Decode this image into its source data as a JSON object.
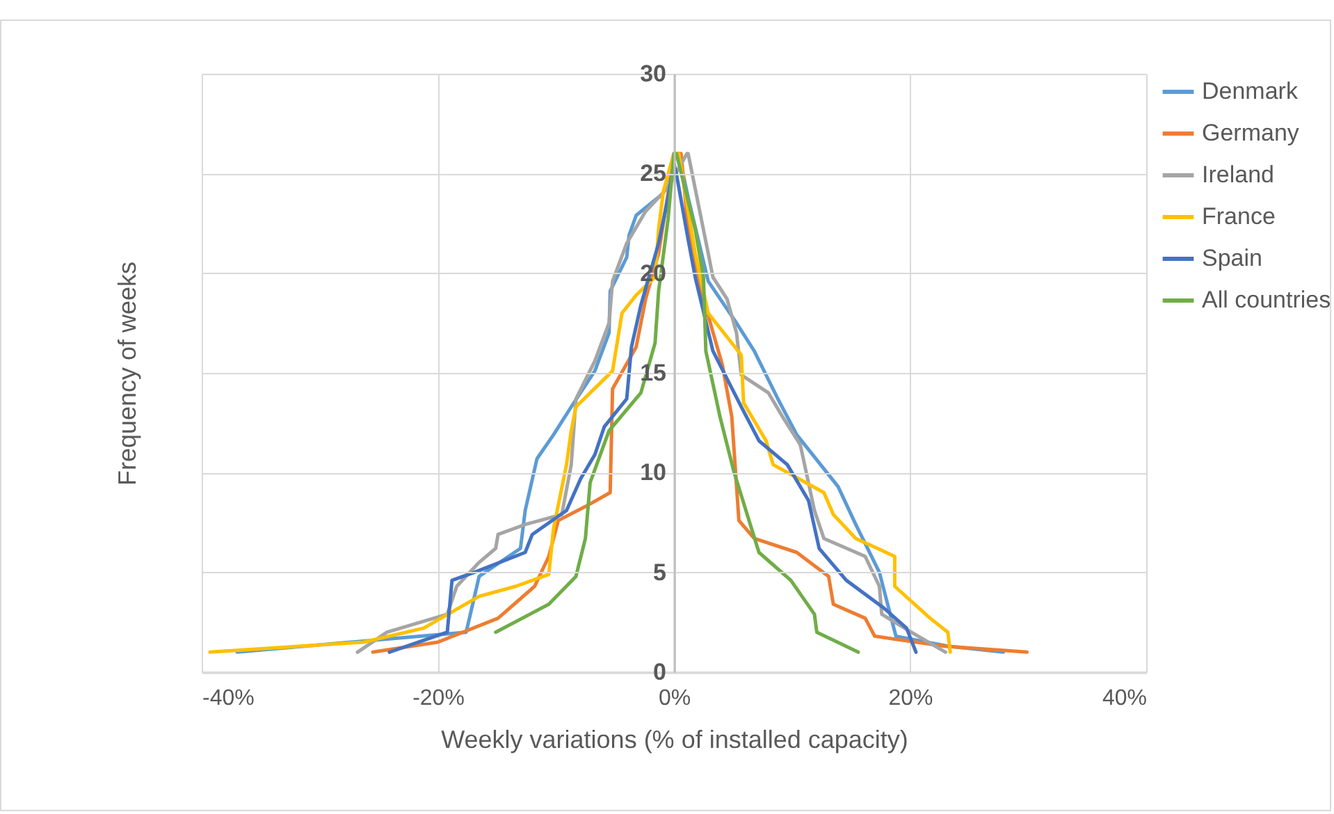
{
  "chart_data": {
    "type": "line",
    "xlabel": "Weekly variations (% of installed capacity)",
    "ylabel": "Frequency of weeks",
    "xlim": [
      -40,
      40
    ],
    "xticks": [
      {
        "value": -40,
        "label": "-40%"
      },
      {
        "value": -20,
        "label": "-20%"
      },
      {
        "value": 0,
        "label": "0%"
      },
      {
        "value": 20,
        "label": "20%"
      },
      {
        "value": 40,
        "label": "40%"
      }
    ],
    "ylim": [
      0,
      30
    ],
    "yticks": [
      0,
      5,
      10,
      15,
      20,
      25,
      30
    ],
    "grid": true,
    "legend": "right",
    "marker": "none",
    "line_style": "solid",
    "series": [
      {
        "name": "Denmark",
        "color": "#5b9bd5",
        "x": [
          -37,
          -17.6,
          -16.5,
          -13,
          -12.6,
          -11.6,
          -10.2,
          -8.7,
          -6.7,
          -5.5,
          -5.4,
          -4,
          -3.8,
          -3.2,
          -0.9,
          0,
          0.4,
          1.2,
          2.9,
          5.3,
          6.8,
          8.8,
          10.4,
          13.9,
          15.4,
          17.4,
          18.8,
          23.2,
          27.9
        ],
        "values": [
          1,
          2,
          4.8,
          6.2,
          8.1,
          10.7,
          11.9,
          13.3,
          15.1,
          17,
          19.1,
          20.8,
          21.9,
          22.9,
          24,
          26,
          26,
          23.8,
          19.6,
          17.5,
          16.1,
          13.7,
          11.9,
          9.3,
          7.4,
          5,
          1.8,
          1.3,
          1
        ]
      },
      {
        "name": "Germany",
        "color": "#ed7d31",
        "x": [
          -25.5,
          -20,
          -14.9,
          -11.8,
          -10.6,
          -9.8,
          -7.5,
          -5.4,
          -5.2,
          -3.2,
          -2.4,
          -1.3,
          -0.5,
          0.1,
          0.6,
          1.2,
          2.5,
          4.1,
          4.9,
          5.5,
          6.8,
          10.4,
          13.1,
          13.5,
          16.2,
          17,
          22.9,
          29.9
        ],
        "values": [
          1,
          1.5,
          2.7,
          4.3,
          5.8,
          7.6,
          8.3,
          9,
          14.2,
          16.3,
          18.7,
          21,
          24,
          26,
          26,
          22.2,
          18.7,
          15.4,
          12.8,
          7.6,
          6.7,
          6,
          4.8,
          3.4,
          2.7,
          1.8,
          1.3,
          1
        ]
      },
      {
        "name": "Ireland",
        "color": "#a5a5a5",
        "x": [
          -26.8,
          -24.3,
          -19.2,
          -18.4,
          -16.5,
          -15.1,
          -14.9,
          -12.6,
          -9.5,
          -8.7,
          -8.3,
          -6.7,
          -5.5,
          -5.2,
          -4,
          -2.4,
          -0.5,
          1.1,
          1.2,
          2.9,
          3.3,
          4.5,
          5.3,
          5.7,
          8,
          9.2,
          10.7,
          11.9,
          12.7,
          16.2,
          17.4,
          17.6,
          20.1,
          23
        ],
        "values": [
          1,
          2,
          2.9,
          4.3,
          5.5,
          6.2,
          6.9,
          7.4,
          7.9,
          10.4,
          13.7,
          15.6,
          17.5,
          19.6,
          21.5,
          23.1,
          24.3,
          26,
          26,
          21,
          19.8,
          18.7,
          17,
          14.9,
          14,
          12.8,
          11.4,
          8.1,
          6.7,
          5.8,
          4.3,
          2.9,
          2,
          1
        ]
      },
      {
        "name": "France",
        "color": "#ffc000",
        "x": [
          -39.3,
          -26.3,
          -21.2,
          -16.5,
          -13.4,
          -10.6,
          -10.2,
          -9.1,
          -8.7,
          -8.3,
          -7.1,
          -5.2,
          -4.4,
          -3.2,
          -1.6,
          -1.3,
          -0.9,
          0,
          0.4,
          1.8,
          2.9,
          5.7,
          5.9,
          7.8,
          8.4,
          12.7,
          13.5,
          15.4,
          18.7,
          18.7,
          21.7,
          23.2,
          23.4
        ],
        "values": [
          1,
          1.5,
          2.2,
          3.8,
          4.3,
          4.9,
          7.2,
          10.4,
          12.1,
          13.3,
          14,
          15.1,
          18,
          18.9,
          19.8,
          22.2,
          24.1,
          26,
          26,
          21,
          18,
          15.9,
          13.5,
          11.6,
          10.4,
          9,
          7.9,
          6.7,
          5.8,
          4.3,
          2.7,
          2,
          1
        ]
      },
      {
        "name": "Spain",
        "color": "#4472c4",
        "x": [
          -24.1,
          -19.2,
          -18.8,
          -16.9,
          -12.6,
          -12,
          -9.1,
          -7.9,
          -6.7,
          -5.9,
          -4,
          -3.6,
          -2.8,
          -1.3,
          -0.5,
          0,
          0.2,
          1.2,
          1.8,
          3.3,
          5.7,
          7.2,
          9.6,
          11.4,
          12.3,
          14.6,
          17.8,
          19.7,
          20.5
        ],
        "values": [
          1,
          2,
          4.6,
          5,
          6,
          6.9,
          8.1,
          9.7,
          10.9,
          12.3,
          13.7,
          16.3,
          18.4,
          21.5,
          23.8,
          25.5,
          25,
          21.7,
          19.8,
          16.1,
          13.3,
          11.6,
          10.4,
          8.6,
          6.2,
          4.6,
          3.2,
          2.2,
          1
        ]
      },
      {
        "name": "All countries",
        "color": "#70ad47",
        "x": [
          -15.1,
          -10.6,
          -8.3,
          -7.5,
          -7.1,
          -5.5,
          -2.8,
          -1.6,
          -1.3,
          -0.5,
          0,
          0.2,
          1.8,
          2.5,
          2.7,
          3.9,
          5.1,
          7.2,
          9.9,
          11.9,
          12.1,
          15.6
        ],
        "values": [
          2,
          3.4,
          4.8,
          6.7,
          9.5,
          12.1,
          14,
          16.5,
          19.1,
          22.7,
          26,
          26,
          22.2,
          19.8,
          16.1,
          12.8,
          10,
          6,
          4.6,
          2.9,
          2,
          1
        ]
      }
    ]
  }
}
